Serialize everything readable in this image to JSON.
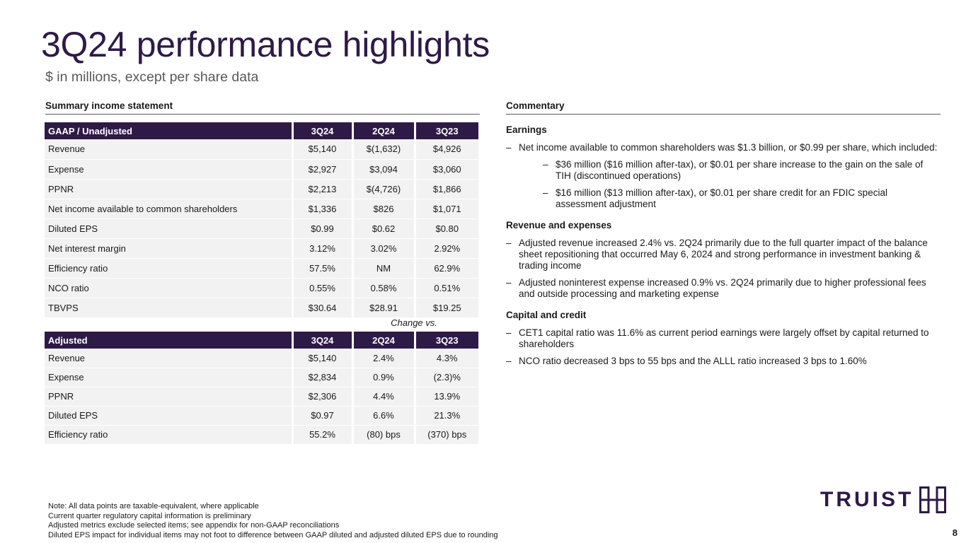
{
  "title": "3Q24 performance highlights",
  "subtitle": "$ in millions, except per share data",
  "left_header": "Summary income statement",
  "right_header": "Commentary",
  "gaap_table": {
    "columns": [
      "GAAP / Unadjusted",
      "3Q24",
      "2Q24",
      "3Q23"
    ],
    "rows": [
      [
        "Revenue",
        "$5,140",
        "$(1,632)",
        "$4,926"
      ],
      [
        "Expense",
        "$2,927",
        "$3,094",
        "$3,060"
      ],
      [
        "PPNR",
        "$2,213",
        "$(4,726)",
        "$1,866"
      ],
      [
        "Net income available to common shareholders",
        "$1,336",
        "$826",
        "$1,071"
      ],
      [
        "Diluted EPS",
        "$0.99",
        "$0.62",
        "$0.80"
      ],
      [
        "Net interest margin",
        "3.12%",
        "3.02%",
        "2.92%"
      ],
      [
        "Efficiency ratio",
        "57.5%",
        "NM",
        "62.9%"
      ],
      [
        "NCO ratio",
        "0.55%",
        "0.58%",
        "0.51%"
      ],
      [
        "TBVPS",
        "$30.64",
        "$28.91",
        "$19.25"
      ]
    ]
  },
  "change_vs": "Change vs.",
  "adjusted_table": {
    "columns": [
      "Adjusted",
      "3Q24",
      "2Q24",
      "3Q23"
    ],
    "rows": [
      [
        "Revenue",
        "$5,140",
        "2.4%",
        "4.3%"
      ],
      [
        "Expense",
        "$2,834",
        "0.9%",
        "(2.3)%"
      ],
      [
        "PPNR",
        "$2,306",
        "4.4%",
        "13.9%"
      ],
      [
        "Diluted EPS",
        "$0.97",
        "6.6%",
        "21.3%"
      ],
      [
        "Efficiency ratio",
        "55.2%",
        "(80) bps",
        "(370) bps"
      ]
    ]
  },
  "commentary": {
    "dash": "–",
    "earnings": {
      "heading": "Earnings",
      "bullet": "Net income available to common shareholders was $1.3 billion, or $0.99 per share, which included:",
      "sub1": "$36 million ($16 million after-tax), or $0.01 per share increase to the gain on the sale of TIH (discontinued operations)",
      "sub2": "$16 million ($13 million after-tax), or $0.01 per share credit for an FDIC special assessment adjustment"
    },
    "revenue": {
      "heading": "Revenue and expenses",
      "b1": "Adjusted revenue increased 2.4% vs. 2Q24 primarily due to the full quarter impact of the balance sheet repositioning that occurred May 6, 2024 and strong performance in investment banking & trading income",
      "b2": "Adjusted noninterest expense increased 0.9% vs. 2Q24 primarily due to higher professional fees and outside processing and marketing expense"
    },
    "capital": {
      "heading": "Capital and credit",
      "b1": "CET1 capital ratio was 11.6% as current period earnings were largely offset by capital returned to shareholders",
      "b2": "NCO ratio decreased 3 bps to 55 bps and the ALLL ratio increased 3 bps to 1.60%"
    }
  },
  "notes": [
    "Note: All data points are taxable-equivalent, where applicable",
    "Current quarter regulatory capital information is preliminary",
    "Adjusted metrics exclude selected items; see appendix for non-GAAP reconciliations",
    "Diluted EPS impact for individual items may not foot to difference between GAAP diluted and adjusted diluted EPS due to rounding"
  ],
  "logo_text": "TRUIST",
  "page_number": "8",
  "colors": {
    "brand": "#2e1a47",
    "row_bg": "#f2f2f2"
  }
}
